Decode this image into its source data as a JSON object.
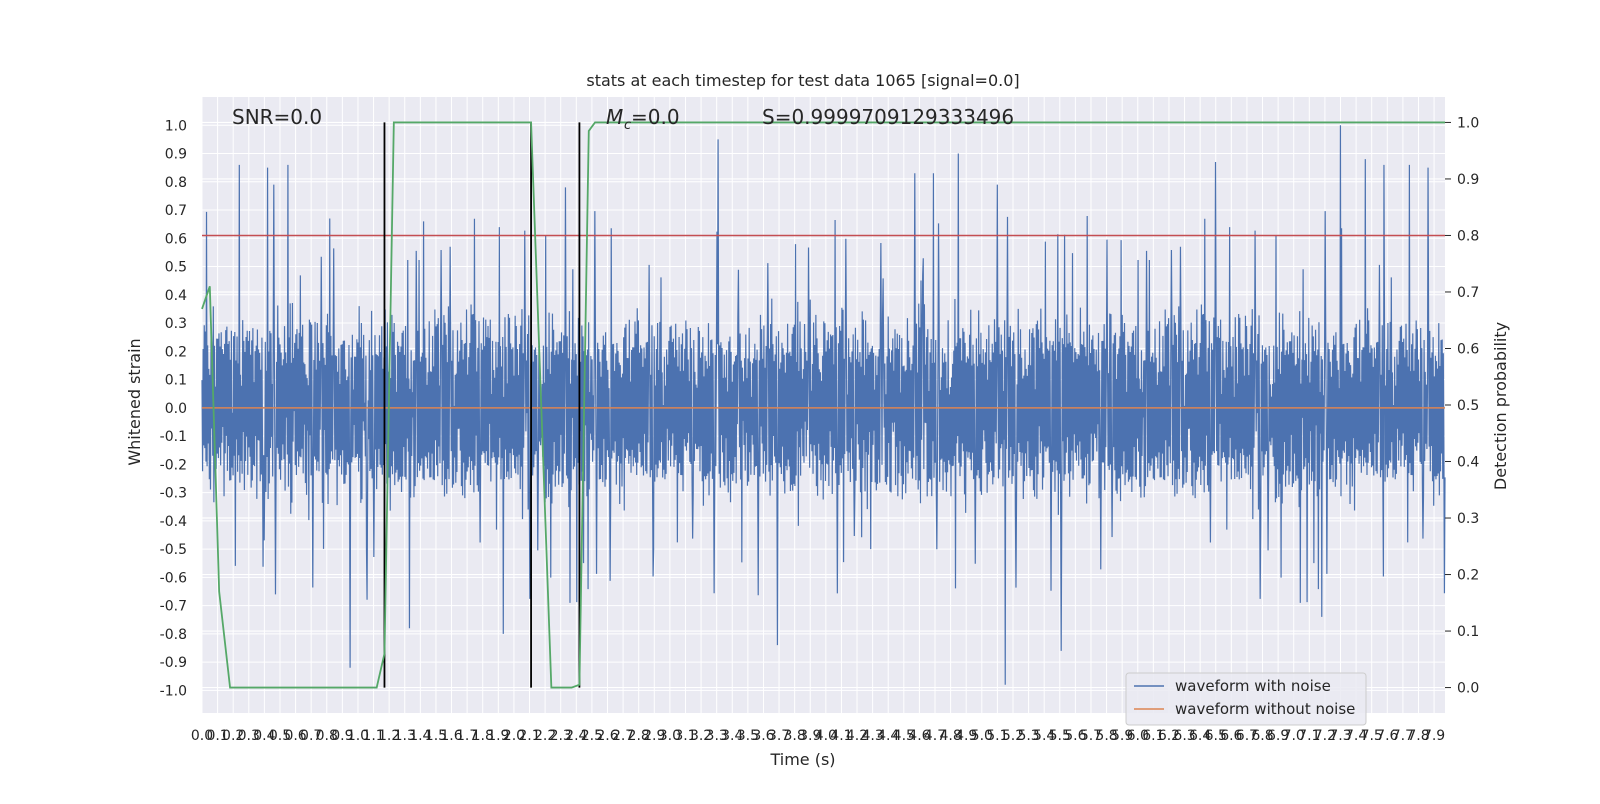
{
  "chart_data": {
    "type": "line",
    "title": "stats at each timestep for test data 1065 [signal=0.0]",
    "xlabel": "Time (s)",
    "ylabel": "Whitened strain",
    "y2label": "Detection probability",
    "xlim": [
      0.0,
      7.97
    ],
    "ylim": [
      -1.08,
      1.1
    ],
    "y2lim": [
      -0.045,
      1.045
    ],
    "grid": true,
    "x_ticks": [
      "0.0",
      "0.1",
      "0.2",
      "0.3",
      "0.4",
      "0.5",
      "0.6",
      "0.7",
      "0.8",
      "0.9",
      "1.0",
      "1.1",
      "1.2",
      "1.3",
      "1.4",
      "1.5",
      "1.6",
      "1.7",
      "1.8",
      "1.9",
      "2.0",
      "2.1",
      "2.2",
      "2.3",
      "2.4",
      "2.5",
      "2.6",
      "2.7",
      "2.8",
      "2.9",
      "3.0",
      "3.1",
      "3.2",
      "3.3",
      "3.4",
      "3.5",
      "3.6",
      "3.7",
      "3.8",
      "3.9",
      "4.0",
      "4.1",
      "4.2",
      "4.3",
      "4.4",
      "4.5",
      "4.6",
      "4.7",
      "4.8",
      "4.9",
      "5.0",
      "5.1",
      "5.2",
      "5.3",
      "5.4",
      "5.5",
      "5.6",
      "5.7",
      "5.8",
      "5.9",
      "6.0",
      "6.1",
      "6.2",
      "6.3",
      "6.4",
      "6.5",
      "6.6",
      "6.7",
      "6.8",
      "6.9",
      "7.0",
      "7.1",
      "7.2",
      "7.3",
      "7.4",
      "7.5",
      "7.6",
      "7.7",
      "7.8",
      "7.9"
    ],
    "y_ticks": [
      "-1.0",
      "-0.9",
      "-0.8",
      "-0.7",
      "-0.6",
      "-0.5",
      "-0.4",
      "-0.3",
      "-0.2",
      "-0.1",
      "0.0",
      "0.1",
      "0.2",
      "0.3",
      "0.4",
      "0.5",
      "0.6",
      "0.7",
      "0.8",
      "0.9",
      "1.0"
    ],
    "y2_ticks": [
      "0.0",
      "0.1",
      "0.2",
      "0.3",
      "0.4",
      "0.5",
      "0.6",
      "0.7",
      "0.8",
      "0.9",
      "1.0"
    ],
    "annotations": {
      "snr": "SNR=0.0",
      "mc": "=0.0",
      "mc_symbol": "M",
      "mc_subscript": "c",
      "s": "S=0.9999709129333496"
    },
    "threshold_line": {
      "y": 0.8,
      "color": "#c44e52"
    },
    "vertical_lines": [
      1.17,
      2.11,
      2.42
    ],
    "legend_position": "lower right",
    "series": [
      {
        "name": "waveform with noise",
        "color": "#4c72b0",
        "kind": "noise",
        "amplitude_range": [
          -0.98,
          1.0
        ],
        "peaks": [
          [
            0.24,
            0.86
          ],
          [
            0.42,
            0.85
          ],
          [
            0.46,
            0.79
          ],
          [
            0.55,
            0.86
          ],
          [
            0.82,
            0.67
          ],
          [
            1.42,
            0.66
          ],
          [
            1.93,
            0.78
          ],
          [
            2.33,
            0.78
          ],
          [
            3.31,
            0.95
          ],
          [
            4.57,
            0.83
          ],
          [
            4.69,
            0.83
          ],
          [
            4.85,
            0.9
          ],
          [
            5.1,
            0.79
          ],
          [
            6.5,
            0.87
          ],
          [
            7.3,
            1.0
          ],
          [
            7.46,
            0.88
          ],
          [
            7.58,
            0.86
          ],
          [
            7.74,
            0.86
          ],
          [
            7.86,
            0.85
          ]
        ],
        "troughs": [
          [
            0.47,
            -0.66
          ],
          [
            0.95,
            -0.92
          ],
          [
            1.33,
            -0.78
          ],
          [
            1.93,
            -0.8
          ],
          [
            3.69,
            -0.84
          ],
          [
            5.15,
            -0.98
          ],
          [
            5.51,
            -0.86
          ],
          [
            7.18,
            -0.74
          ]
        ]
      },
      {
        "name": "waveform without noise",
        "color": "#dd8452",
        "x": [
          0.0,
          7.97
        ],
        "y": [
          0.0,
          0.0
        ]
      },
      {
        "name": "Detection probability",
        "color": "#55a868",
        "axis": "right",
        "x": [
          0.0,
          0.05,
          0.11,
          0.18,
          1.12,
          1.17,
          1.23,
          2.11,
          2.24,
          2.37,
          2.42,
          2.48,
          2.52,
          2.6,
          7.97
        ],
        "y": [
          0.67,
          0.71,
          0.17,
          0.0,
          0.0,
          0.06,
          1.0,
          1.0,
          0.0,
          0.0,
          0.005,
          0.985,
          1.0,
          1.0,
          1.0
        ]
      }
    ]
  }
}
